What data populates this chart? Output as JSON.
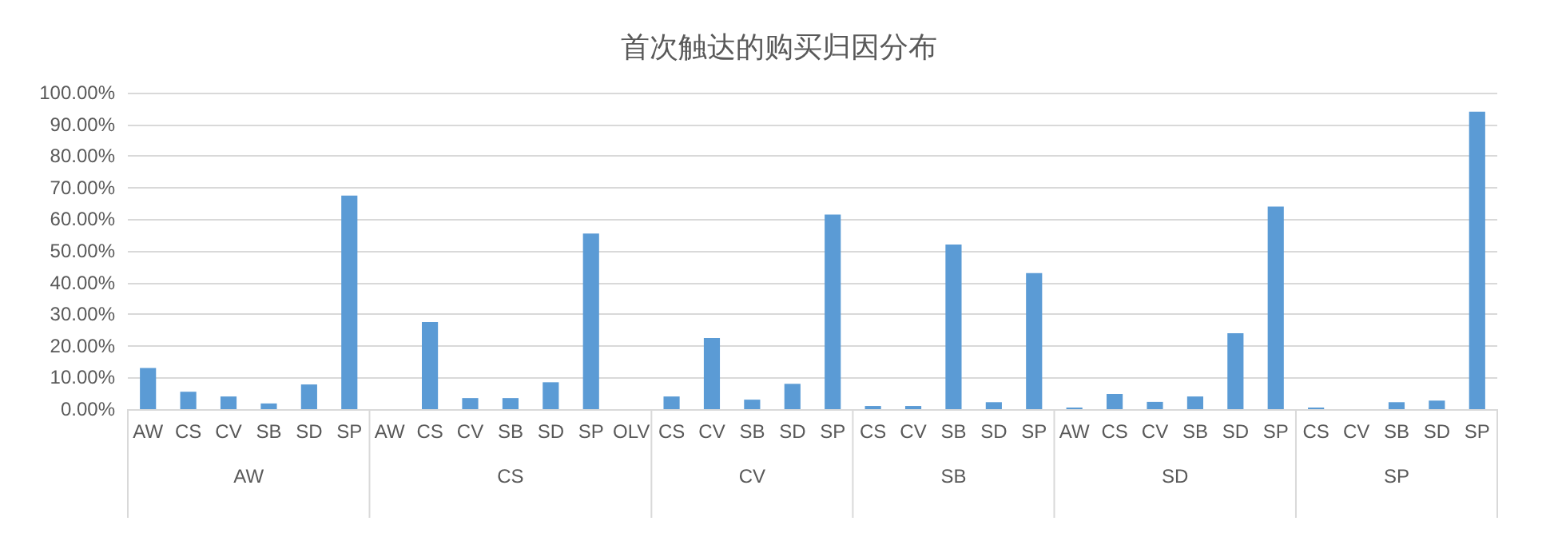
{
  "chart_data": {
    "type": "bar",
    "title": "首次触达的购买归因分布",
    "categories": [
      "AW",
      "CS",
      "CV",
      "SB",
      "SD",
      "SP",
      "AW",
      "CS",
      "CV",
      "SB",
      "SD",
      "SP",
      "OLV",
      "CS",
      "CV",
      "SB",
      "SD",
      "SP",
      "CS",
      "CV",
      "SB",
      "SD",
      "SP",
      "AW",
      "CS",
      "CV",
      "SB",
      "SD",
      "SP",
      "CS",
      "CV",
      "SB",
      "SD",
      "SP"
    ],
    "values": [
      13,
      5.5,
      4,
      1.8,
      7.8,
      67.5,
      0,
      27.5,
      3.5,
      3.5,
      8.5,
      55.5,
      0,
      4,
      22.5,
      3,
      8,
      61.5,
      1,
      1,
      52,
      2.2,
      43,
      0.5,
      4.8,
      2.3,
      4,
      24,
      64,
      0.5,
      0,
      2.2,
      2.7,
      94
    ],
    "color": "#5b9bd5",
    "ylim": [
      0,
      100
    ],
    "yticks": [
      {
        "value": 0,
        "label": "0.00%"
      },
      {
        "value": 10,
        "label": "10.00%"
      },
      {
        "value": 20,
        "label": "20.00%"
      },
      {
        "value": 30,
        "label": "30.00%"
      },
      {
        "value": 40,
        "label": "40.00%"
      },
      {
        "value": 50,
        "label": "50.00%"
      },
      {
        "value": 60,
        "label": "60.00%"
      },
      {
        "value": 70,
        "label": "70.00%"
      },
      {
        "value": 80,
        "label": "80.00%"
      },
      {
        "value": 90,
        "label": "90.00%"
      },
      {
        "value": 100,
        "label": "100.00%"
      }
    ],
    "grid": "y",
    "annotations": [
      "AW",
      "CS",
      "CV",
      "SB",
      "SD",
      "SP"
    ]
  }
}
